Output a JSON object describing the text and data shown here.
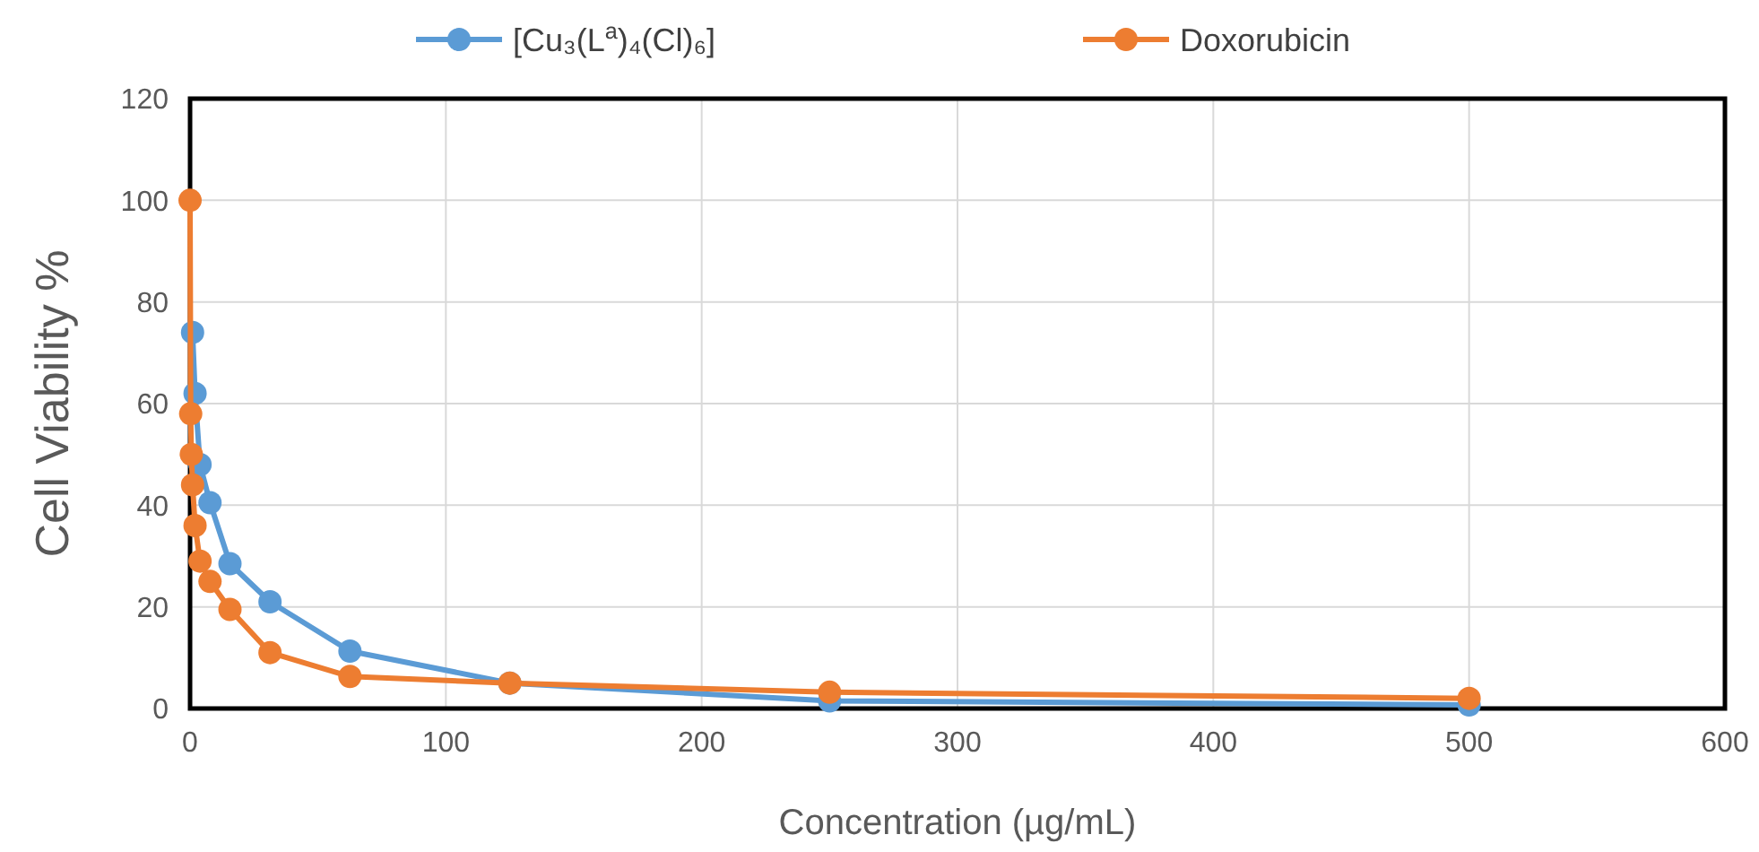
{
  "chart_data": {
    "type": "line",
    "xlabel": "Concentration (µg/mL)",
    "ylabel": "Cell Viability %",
    "xlim": [
      0,
      600
    ],
    "xticks": [
      0,
      100,
      200,
      300,
      400,
      500,
      600
    ],
    "ylim": [
      0,
      120
    ],
    "yticks": [
      0,
      20,
      40,
      60,
      80,
      100,
      120
    ],
    "grid": true,
    "legend": "top",
    "marker": "circle",
    "line_style": "solid",
    "series": [
      {
        "name": "[Cu₃(L$^{a}$)₄(Cl)₆]",
        "color": "#5b9bd5",
        "x": [
          0.98,
          1.95,
          3.9,
          7.8,
          15.6,
          31.25,
          62.5,
          125,
          250,
          500
        ],
        "values": [
          74,
          62,
          48,
          40.5,
          28.5,
          21,
          11.3,
          5,
          1.5,
          0.7
        ]
      },
      {
        "name": "Doxorubicin",
        "color": "#ed7d31",
        "x": [
          0,
          0.24,
          0.49,
          0.98,
          1.95,
          3.9,
          7.8,
          15.6,
          31.25,
          62.5,
          125,
          250,
          500
        ],
        "values": [
          100,
          58,
          50,
          44,
          36,
          29,
          25,
          19.5,
          11,
          6.3,
          5,
          3.2,
          2
        ]
      }
    ]
  }
}
